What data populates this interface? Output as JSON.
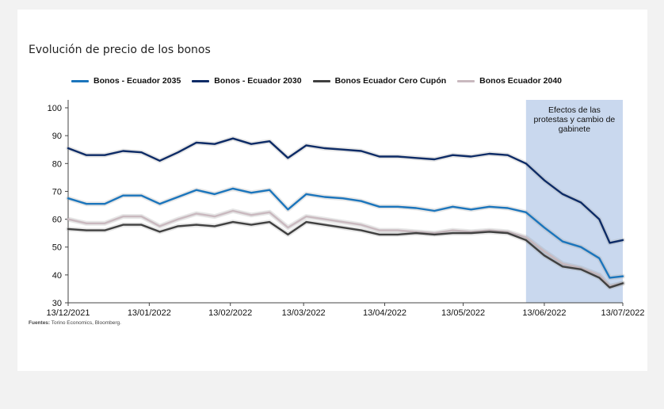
{
  "chart_data": {
    "type": "line",
    "title": "Evolución de precio de los bonos",
    "ylim": [
      30,
      100
    ],
    "y_ticks": [
      30,
      40,
      50,
      60,
      70,
      80,
      90,
      100
    ],
    "x_range": [
      "2021-12-13",
      "2022-07-13"
    ],
    "x_ticks": [
      "13/12/2021",
      "13/01/2022",
      "13/02/2022",
      "13/03/2022",
      "13/04/2022",
      "13/05/2022",
      "13/06/2022",
      "13/07/2022"
    ],
    "x_tick_dates": [
      "2021-12-13",
      "2022-01-13",
      "2022-02-13",
      "2022-03-13",
      "2022-04-13",
      "2022-05-13",
      "2022-06-13",
      "2022-07-13"
    ],
    "grid": false,
    "legend_position": "top",
    "shaded_region": {
      "start": "2022-06-06",
      "end": "2022-07-13",
      "label_lines": [
        "Efectos de las",
        "protestas y cambio de",
        "gabinete"
      ],
      "color": "#c9d8ee"
    },
    "series": [
      {
        "name": "Bonos - Ecuador 2035",
        "color": "#1b75bc",
        "x": [
          "2021-12-13",
          "2021-12-20",
          "2021-12-27",
          "2022-01-03",
          "2022-01-10",
          "2022-01-17",
          "2022-01-24",
          "2022-01-31",
          "2022-02-07",
          "2022-02-14",
          "2022-02-21",
          "2022-02-28",
          "2022-03-07",
          "2022-03-14",
          "2022-03-21",
          "2022-03-28",
          "2022-04-04",
          "2022-04-11",
          "2022-04-18",
          "2022-04-25",
          "2022-05-02",
          "2022-05-09",
          "2022-05-16",
          "2022-05-23",
          "2022-05-30",
          "2022-06-06",
          "2022-06-13",
          "2022-06-20",
          "2022-06-27",
          "2022-07-04",
          "2022-07-08",
          "2022-07-13"
        ],
        "y": [
          67.5,
          65.5,
          65.5,
          68.5,
          68.5,
          65.5,
          68,
          70.5,
          69,
          71,
          69.5,
          70.5,
          63.5,
          69,
          68,
          67.5,
          66.5,
          64.5,
          64.5,
          64,
          63,
          64.5,
          63.5,
          64.5,
          64,
          62.5,
          57,
          52,
          50,
          46,
          39,
          39.5
        ]
      },
      {
        "name": "Bonos - Ecuador 2030",
        "color": "#0d2b66",
        "x": [
          "2021-12-13",
          "2021-12-20",
          "2021-12-27",
          "2022-01-03",
          "2022-01-10",
          "2022-01-17",
          "2022-01-24",
          "2022-01-31",
          "2022-02-07",
          "2022-02-14",
          "2022-02-21",
          "2022-02-28",
          "2022-03-07",
          "2022-03-14",
          "2022-03-21",
          "2022-03-28",
          "2022-04-04",
          "2022-04-11",
          "2022-04-18",
          "2022-04-25",
          "2022-05-02",
          "2022-05-09",
          "2022-05-16",
          "2022-05-23",
          "2022-05-30",
          "2022-06-06",
          "2022-06-13",
          "2022-06-20",
          "2022-06-27",
          "2022-07-04",
          "2022-07-08",
          "2022-07-13"
        ],
        "y": [
          85.5,
          83,
          83,
          84.5,
          84,
          81,
          84,
          87.5,
          87,
          89,
          87,
          88,
          82,
          86.5,
          85.5,
          85,
          84.5,
          82.5,
          82.5,
          82,
          81.5,
          83,
          82.5,
          83.5,
          83,
          80,
          74,
          69,
          66,
          60,
          51.5,
          52.5
        ]
      },
      {
        "name": "Bonos Ecuador Cero Cupón",
        "color": "#404040",
        "x": [
          "2021-12-13",
          "2021-12-20",
          "2021-12-27",
          "2022-01-03",
          "2022-01-10",
          "2022-01-17",
          "2022-01-24",
          "2022-01-31",
          "2022-02-07",
          "2022-02-14",
          "2022-02-21",
          "2022-02-28",
          "2022-03-07",
          "2022-03-14",
          "2022-03-21",
          "2022-03-28",
          "2022-04-04",
          "2022-04-11",
          "2022-04-18",
          "2022-04-25",
          "2022-05-02",
          "2022-05-09",
          "2022-05-16",
          "2022-05-23",
          "2022-05-30",
          "2022-06-06",
          "2022-06-13",
          "2022-06-20",
          "2022-06-27",
          "2022-07-04",
          "2022-07-08",
          "2022-07-13"
        ],
        "y": [
          56.5,
          56,
          56,
          58,
          58,
          55.5,
          57.5,
          58,
          57.5,
          59,
          58,
          59,
          54.5,
          59,
          58,
          57,
          56,
          54.5,
          54.5,
          55,
          54.5,
          55,
          55,
          55.5,
          55,
          52.5,
          47,
          43,
          42,
          39,
          35.5,
          37
        ]
      },
      {
        "name": "Bonos Ecuador 2040",
        "color": "#c9b9bf",
        "x": [
          "2021-12-13",
          "2021-12-20",
          "2021-12-27",
          "2022-01-03",
          "2022-01-10",
          "2022-01-17",
          "2022-01-24",
          "2022-01-31",
          "2022-02-07",
          "2022-02-14",
          "2022-02-21",
          "2022-02-28",
          "2022-03-07",
          "2022-03-14",
          "2022-03-21",
          "2022-03-28",
          "2022-04-04",
          "2022-04-11",
          "2022-04-18",
          "2022-04-25",
          "2022-05-02",
          "2022-05-09",
          "2022-05-16",
          "2022-05-23",
          "2022-05-30",
          "2022-06-06",
          "2022-06-13",
          "2022-06-20",
          "2022-06-27",
          "2022-07-04",
          "2022-07-08",
          "2022-07-13"
        ],
        "y": [
          60,
          58.5,
          58.5,
          61,
          61,
          57.5,
          60,
          62,
          61,
          63,
          61.5,
          62.5,
          57,
          61,
          60,
          59,
          58,
          56,
          56,
          55.5,
          55,
          56,
          55.5,
          56,
          55.5,
          53.5,
          48.5,
          44,
          42.5,
          40,
          36,
          37
        ]
      }
    ]
  },
  "source": {
    "label": "Fuentes:",
    "text": " Torino Economics, Bloomberg."
  }
}
